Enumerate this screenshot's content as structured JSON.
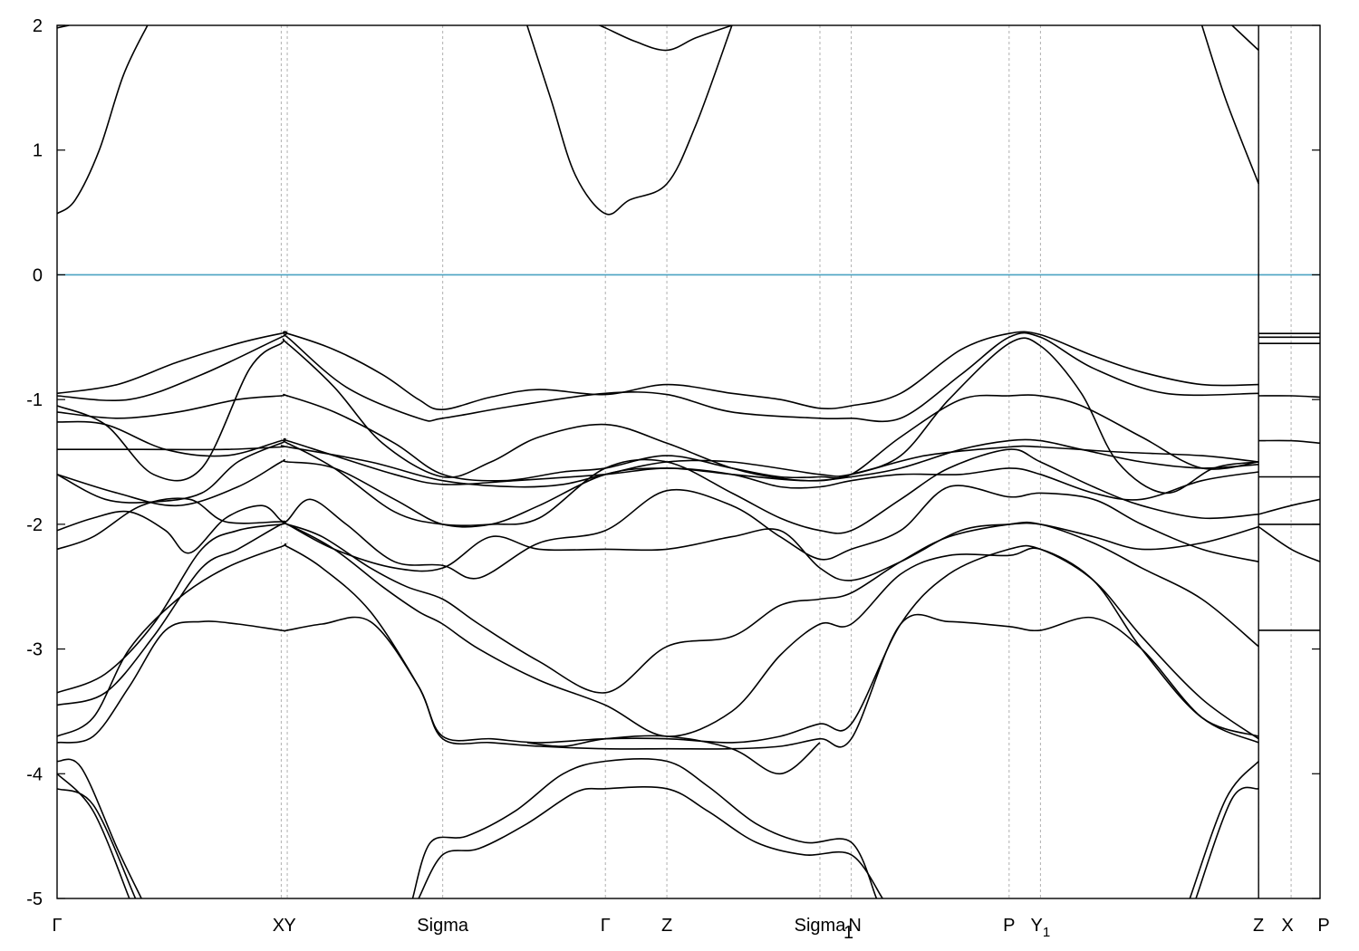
{
  "colors": {
    "bands": "#000000",
    "fermi_line": "#4aa3c2",
    "kpath_lines": "#b0b0b0",
    "background": "#ffffff"
  },
  "chart_data": {
    "type": "line",
    "title": "",
    "xlabel": "",
    "ylabel": "",
    "ylim": [
      -5,
      2
    ],
    "yticks": [
      -5,
      -4,
      -3,
      -2,
      -1,
      0,
      1,
      2
    ],
    "ytick_labels": [
      "-5",
      "-4",
      "-3",
      "-2",
      "-1",
      "0",
      "1",
      "2"
    ],
    "xlim": [
      0,
      10.48
    ],
    "kpoints": [
      {
        "label": "Γ",
        "sub": "",
        "x": 0.0
      },
      {
        "label": "X",
        "sub": "",
        "x": 1.86
      },
      {
        "label": "Y",
        "sub": "",
        "x": 1.91
      },
      {
        "label": "Sigma",
        "sub": "",
        "x": 3.2
      },
      {
        "label": "Γ",
        "sub": "",
        "x": 4.55
      },
      {
        "label": "Z",
        "sub": "",
        "x": 5.06
      },
      {
        "label": "Sigma",
        "sub": "",
        "x": 6.33
      },
      {
        "label": "1",
        "sub": "",
        "x": 6.59
      },
      {
        "label": "N",
        "sub": "",
        "x": 6.59
      },
      {
        "label": "P",
        "sub": "",
        "x": 7.9
      },
      {
        "label": "Y",
        "sub": "1",
        "x": 8.16
      },
      {
        "label": "Z",
        "sub": "",
        "x": 9.97
      },
      {
        "label": "X",
        "sub": "",
        "x": 10.24
      },
      {
        "label": "P",
        "sub": "",
        "x": 10.48
      }
    ],
    "break_x": 9.97,
    "fermi_level": 0,
    "grid": false,
    "legend": "none",
    "series": [
      {
        "x": [
          0,
          0.15,
          0.35,
          0.55,
          0.75
        ],
        "y": [
          0.49,
          0.6,
          1.0,
          1.6,
          2.0
        ]
      },
      {
        "x": [
          0,
          0.1
        ],
        "y": [
          1.98,
          2.0
        ]
      },
      {
        "x": [
          3.9,
          4.1,
          4.3,
          4.55,
          4.75,
          5.06,
          5.3,
          5.6
        ],
        "y": [
          2.0,
          1.4,
          0.8,
          0.49,
          0.6,
          0.73,
          1.2,
          2.0
        ]
      },
      {
        "x": [
          4.5,
          4.55,
          4.8,
          5.06,
          5.3,
          5.6
        ],
        "y": [
          2.0,
          1.98,
          1.87,
          1.8,
          1.9,
          2.0
        ]
      },
      {
        "x": [
          9.5,
          9.7,
          9.97
        ],
        "y": [
          2.0,
          1.4,
          0.73
        ]
      },
      {
        "x": [
          9.75,
          9.97
        ],
        "y": [
          2.0,
          1.8
        ]
      },
      {
        "x": [
          0,
          0.5,
          1.0,
          1.5,
          1.86,
          1.91,
          2.3,
          2.7,
          3.0,
          3.2,
          3.6,
          4.0,
          4.55,
          5.06,
          5.6,
          6.0,
          6.33,
          6.59,
          7.0,
          7.5,
          7.9,
          8.16,
          8.6,
          9.0,
          9.5,
          9.97
        ],
        "y": [
          -0.95,
          -0.88,
          -0.7,
          -0.55,
          -0.47,
          -0.47,
          -0.6,
          -0.8,
          -1.0,
          -1.08,
          -0.98,
          -0.92,
          -0.96,
          -0.88,
          -0.95,
          -1.0,
          -1.07,
          -1.05,
          -0.95,
          -0.6,
          -0.47,
          -0.48,
          -0.65,
          -0.78,
          -0.88,
          -0.88
        ]
      },
      {
        "x": [
          0,
          0.6,
          1.2,
          1.86,
          1.91,
          2.4,
          3.0,
          3.2,
          3.8,
          4.55,
          5.06,
          5.6,
          6.33,
          6.59,
          7.0,
          7.5,
          7.9,
          8.16,
          8.6,
          9.2,
          9.97
        ],
        "y": [
          -0.97,
          -1.0,
          -0.8,
          -0.5,
          -0.5,
          -0.9,
          -1.15,
          -1.15,
          -1.05,
          -0.95,
          -0.96,
          -1.1,
          -1.15,
          -1.15,
          -1.15,
          -0.8,
          -0.5,
          -0.5,
          -0.75,
          -0.95,
          -0.95
        ]
      },
      {
        "x": [
          0,
          0.4,
          0.8,
          1.2,
          1.6,
          1.86,
          1.91,
          2.3,
          2.7,
          3.2,
          3.6,
          4.0,
          4.55,
          5.06,
          5.6,
          6.0,
          6.33,
          6.59,
          7.0,
          7.4,
          7.9,
          8.16,
          8.5,
          8.8,
          9.2,
          9.6,
          9.97
        ],
        "y": [
          -1.05,
          -1.2,
          -1.6,
          -1.55,
          -0.75,
          -0.55,
          -0.55,
          -0.9,
          -1.35,
          -1.62,
          -1.5,
          -1.3,
          -1.2,
          -1.35,
          -1.55,
          -1.63,
          -1.65,
          -1.6,
          -1.45,
          -1.0,
          -0.55,
          -0.57,
          -0.95,
          -1.5,
          -1.75,
          -1.55,
          -1.5
        ]
      },
      {
        "x": [
          0,
          0.5,
          1.0,
          1.5,
          1.86,
          1.91,
          2.3,
          2.8,
          3.2,
          3.7,
          4.2,
          4.55,
          5.06,
          5.6,
          6.0,
          6.33,
          6.59,
          7.0,
          7.5,
          7.9,
          8.16,
          8.5,
          9.0,
          9.5,
          9.97
        ],
        "y": [
          -1.1,
          -1.15,
          -1.1,
          -1.0,
          -0.97,
          -0.97,
          -1.1,
          -1.35,
          -1.6,
          -1.65,
          -1.58,
          -1.55,
          -1.45,
          -1.55,
          -1.62,
          -1.62,
          -1.6,
          -1.3,
          -1.0,
          -0.97,
          -0.97,
          -1.05,
          -1.3,
          -1.55,
          -1.5
        ]
      },
      {
        "x": [
          0,
          0.4,
          0.9,
          1.4,
          1.86,
          1.91,
          2.3,
          2.8,
          3.2,
          3.8,
          4.55,
          5.06,
          5.6,
          6.2,
          6.59,
          7.0,
          7.5,
          7.9,
          8.16,
          8.5,
          9.0,
          9.5,
          9.97
        ],
        "y": [
          -1.18,
          -1.2,
          -1.4,
          -1.45,
          -1.33,
          -1.33,
          -1.45,
          -1.6,
          -1.68,
          -1.65,
          -1.6,
          -1.55,
          -1.6,
          -1.65,
          -1.62,
          -1.55,
          -1.4,
          -1.33,
          -1.33,
          -1.4,
          -1.5,
          -1.55,
          -1.52
        ]
      },
      {
        "x": [
          0,
          0.7,
          1.4,
          1.86,
          1.91,
          2.6,
          3.2,
          3.8,
          4.2,
          4.55,
          5.06,
          5.6,
          6.33,
          6.59,
          7.2,
          7.9,
          8.16,
          8.8,
          9.5,
          9.97
        ],
        "y": [
          -1.4,
          -1.4,
          -1.4,
          -1.38,
          -1.38,
          -1.5,
          -1.65,
          -1.7,
          -1.68,
          -1.6,
          -1.5,
          -1.5,
          -1.6,
          -1.6,
          -1.45,
          -1.38,
          -1.38,
          -1.42,
          -1.45,
          -1.5
        ]
      },
      {
        "x": [
          0,
          0.5,
          1.0,
          1.5,
          1.86,
          1.91,
          2.3,
          2.8,
          3.2,
          3.6,
          4.0,
          4.55,
          5.06,
          5.6,
          6.0,
          6.33,
          6.59,
          7.0,
          7.5,
          7.9,
          8.16,
          8.6,
          9.0,
          9.5,
          9.97
        ],
        "y": [
          -1.6,
          -1.75,
          -1.85,
          -1.7,
          -1.5,
          -1.5,
          -1.55,
          -1.8,
          -2.0,
          -2.0,
          -1.85,
          -1.6,
          -1.55,
          -1.6,
          -1.7,
          -1.7,
          -1.65,
          -1.6,
          -1.6,
          -1.55,
          -1.6,
          -1.75,
          -1.8,
          -1.65,
          -1.58
        ]
      },
      {
        "x": [
          0,
          0.4,
          0.8,
          1.2,
          1.5,
          1.86,
          1.91,
          2.3,
          2.8,
          3.2,
          3.6,
          4.0,
          4.55,
          5.06,
          5.6,
          6.0,
          6.33,
          6.59,
          7.0,
          7.4,
          7.9,
          8.16,
          8.6,
          9.0,
          9.5,
          9.97
        ],
        "y": [
          -1.6,
          -1.8,
          -1.82,
          -1.75,
          -1.5,
          -1.35,
          -1.35,
          -1.55,
          -1.9,
          -2.0,
          -2.0,
          -1.95,
          -1.55,
          -1.5,
          -1.75,
          -1.95,
          -2.05,
          -2.05,
          -1.8,
          -1.55,
          -1.4,
          -1.5,
          -1.7,
          -1.85,
          -1.95,
          -1.92
        ]
      },
      {
        "x": [
          0,
          0.3,
          0.6,
          0.9,
          1.1,
          1.4,
          1.7,
          1.86,
          1.91,
          2.1,
          2.4,
          2.8,
          3.2,
          3.5,
          4.0,
          4.55,
          5.06,
          5.6,
          6.0,
          6.33,
          6.59,
          7.0,
          7.4,
          7.9,
          8.16,
          8.6,
          9.0,
          9.5,
          9.97
        ],
        "y": [
          -2.05,
          -1.95,
          -1.9,
          -2.05,
          -2.23,
          -1.95,
          -1.85,
          -1.97,
          -1.97,
          -1.8,
          -2.0,
          -2.3,
          -2.33,
          -2.43,
          -2.15,
          -2.05,
          -1.73,
          -1.85,
          -2.1,
          -2.28,
          -2.2,
          -2.05,
          -1.7,
          -1.78,
          -1.75,
          -1.8,
          -2.0,
          -2.2,
          -2.3
        ]
      },
      {
        "x": [
          0,
          0.3,
          0.7,
          1.1,
          1.4,
          1.86,
          1.91,
          2.3,
          2.8,
          3.2,
          3.6,
          4.0,
          4.55,
          5.06,
          5.6,
          6.0,
          6.33,
          6.59,
          7.0,
          7.5,
          7.9,
          8.16,
          8.6,
          9.0,
          9.5,
          9.97
        ],
        "y": [
          -2.2,
          -2.1,
          -1.85,
          -1.8,
          -1.98,
          -1.98,
          -2.0,
          -2.2,
          -2.35,
          -2.35,
          -2.1,
          -2.2,
          -2.2,
          -2.2,
          -2.1,
          -2.05,
          -2.35,
          -2.45,
          -2.3,
          -2.05,
          -2.0,
          -2.0,
          -2.1,
          -2.2,
          -2.15,
          -2.02
        ]
      },
      {
        "x": [
          0,
          0.4,
          0.8,
          1.2,
          1.5,
          1.86,
          1.91,
          2.2,
          2.6,
          2.9,
          3.2,
          3.5,
          4.0,
          4.55,
          5.06,
          5.6,
          6.0,
          6.33,
          6.59,
          7.0,
          7.4,
          7.9,
          8.16,
          8.6,
          9.0,
          9.5,
          9.97
        ],
        "y": [
          -3.35,
          -3.2,
          -2.8,
          -2.2,
          -2.05,
          -2.0,
          -2.0,
          -2.1,
          -2.35,
          -2.5,
          -2.6,
          -2.8,
          -3.1,
          -3.35,
          -2.98,
          -2.9,
          -2.65,
          -2.6,
          -2.55,
          -2.3,
          -2.1,
          -2.0,
          -2.0,
          -2.15,
          -2.35,
          -2.6,
          -2.98
        ]
      },
      {
        "x": [
          0,
          0.4,
          0.8,
          1.2,
          1.5,
          1.86,
          1.91,
          2.3,
          2.7,
          3.0,
          3.2,
          3.5,
          4.0,
          4.55,
          5.06,
          5.6,
          6.0,
          6.33,
          6.59,
          7.0,
          7.4,
          7.9,
          8.16,
          8.6,
          9.0,
          9.5,
          9.97
        ],
        "y": [
          -3.45,
          -3.35,
          -2.9,
          -2.35,
          -2.2,
          -2.0,
          -2.0,
          -2.2,
          -2.5,
          -2.7,
          -2.8,
          -3.0,
          -3.25,
          -3.45,
          -3.7,
          -3.5,
          -3.05,
          -2.8,
          -2.8,
          -2.4,
          -2.25,
          -2.25,
          -2.2,
          -2.45,
          -3.0,
          -3.55,
          -3.7
        ]
      },
      {
        "x": [
          0,
          0.3,
          0.6,
          1.0,
          1.4,
          1.86,
          1.91,
          2.2,
          2.6,
          3.0,
          3.2,
          3.6,
          4.0,
          4.55,
          5.06,
          5.6,
          6.0,
          6.33,
          6.59,
          7.0,
          7.4,
          7.9,
          8.16,
          8.6,
          9.0,
          9.5,
          9.97
        ],
        "y": [
          -3.7,
          -3.55,
          -3.0,
          -2.6,
          -2.35,
          -2.18,
          -2.18,
          -2.35,
          -2.7,
          -3.3,
          -3.7,
          -3.72,
          -3.75,
          -3.72,
          -3.72,
          -3.75,
          -3.7,
          -3.6,
          -3.6,
          -2.8,
          -2.4,
          -2.2,
          -2.2,
          -2.45,
          -2.9,
          -3.4,
          -3.72
        ]
      },
      {
        "x": [
          0,
          0.3,
          0.6,
          0.9,
          1.2,
          1.5,
          1.86,
          1.91,
          2.2,
          2.6,
          3.0,
          3.2,
          3.6,
          4.0,
          4.55,
          5.06,
          5.6,
          6.0,
          6.33,
          6.59,
          7.0,
          7.4,
          7.9,
          8.16,
          8.6,
          9.0,
          9.5,
          9.97
        ],
        "y": [
          -3.75,
          -3.7,
          -3.3,
          -2.85,
          -2.78,
          -2.8,
          -2.85,
          -2.85,
          -2.8,
          -2.78,
          -3.3,
          -3.72,
          -3.75,
          -3.78,
          -3.8,
          -3.8,
          -3.8,
          -3.78,
          -3.72,
          -3.72,
          -2.8,
          -2.78,
          -2.82,
          -2.85,
          -2.75,
          -3.0,
          -3.55,
          -3.75
        ]
      },
      {
        "x": [
          0,
          0.2,
          0.5,
          0.7
        ],
        "y": [
          -3.9,
          -3.95,
          -4.6,
          -5.0
        ]
      },
      {
        "x": [
          0,
          0.3,
          0.6
        ],
        "y": [
          -4.0,
          -4.3,
          -5.0
        ]
      },
      {
        "x": [
          0,
          0.3,
          0.65
        ],
        "y": [
          -4.12,
          -4.25,
          -5.0
        ]
      },
      {
        "x": [
          2.95,
          3.1,
          3.4,
          3.8,
          4.2,
          4.55,
          5.06,
          5.4,
          5.8,
          6.2,
          6.59,
          6.8
        ],
        "y": [
          -5.0,
          -4.55,
          -4.5,
          -4.3,
          -4.0,
          -3.9,
          -3.9,
          -4.1,
          -4.4,
          -4.55,
          -4.55,
          -5.0
        ]
      },
      {
        "x": [
          3.0,
          3.2,
          3.5,
          3.9,
          4.3,
          4.55,
          5.06,
          5.4,
          5.8,
          6.2,
          6.59,
          6.85
        ],
        "y": [
          -5.0,
          -4.65,
          -4.6,
          -4.4,
          -4.15,
          -4.12,
          -4.12,
          -4.3,
          -4.55,
          -4.65,
          -4.65,
          -5.0
        ]
      },
      {
        "x": [
          3.9,
          4.2,
          4.55,
          5.06,
          5.6,
          6.0,
          6.33
        ],
        "y": [
          -3.75,
          -3.78,
          -3.72,
          -3.7,
          -3.8,
          -4.0,
          -3.75
        ]
      },
      {
        "x": [
          9.4,
          9.7,
          9.97
        ],
        "y": [
          -5.0,
          -4.2,
          -3.9
        ]
      },
      {
        "x": [
          9.45,
          9.75,
          9.97
        ],
        "y": [
          -5.0,
          -4.2,
          -4.12
        ]
      },
      {
        "x": [
          9.97,
          10.24,
          10.48
        ],
        "y": [
          -0.47,
          -0.47,
          -0.47
        ]
      },
      {
        "x": [
          9.97,
          10.24,
          10.48
        ],
        "y": [
          -0.5,
          -0.5,
          -0.5
        ]
      },
      {
        "x": [
          9.97,
          10.24,
          10.48
        ],
        "y": [
          -0.55,
          -0.55,
          -0.55
        ]
      },
      {
        "x": [
          9.97,
          10.24,
          10.48
        ],
        "y": [
          -0.97,
          -0.97,
          -0.98
        ]
      },
      {
        "x": [
          9.97,
          10.24,
          10.48
        ],
        "y": [
          -1.33,
          -1.33,
          -1.35
        ]
      },
      {
        "x": [
          9.97,
          10.24,
          10.48
        ],
        "y": [
          -1.62,
          -1.62,
          -1.62
        ]
      },
      {
        "x": [
          9.97,
          10.24,
          10.48
        ],
        "y": [
          -1.92,
          -1.85,
          -1.8
        ]
      },
      {
        "x": [
          9.97,
          10.24,
          10.48
        ],
        "y": [
          -2.0,
          -2.0,
          -2.0
        ]
      },
      {
        "x": [
          9.97,
          10.24,
          10.48
        ],
        "y": [
          -2.02,
          -2.2,
          -2.3
        ]
      },
      {
        "x": [
          9.97,
          10.24,
          10.48
        ],
        "y": [
          -2.85,
          -2.85,
          -2.85
        ]
      }
    ]
  }
}
